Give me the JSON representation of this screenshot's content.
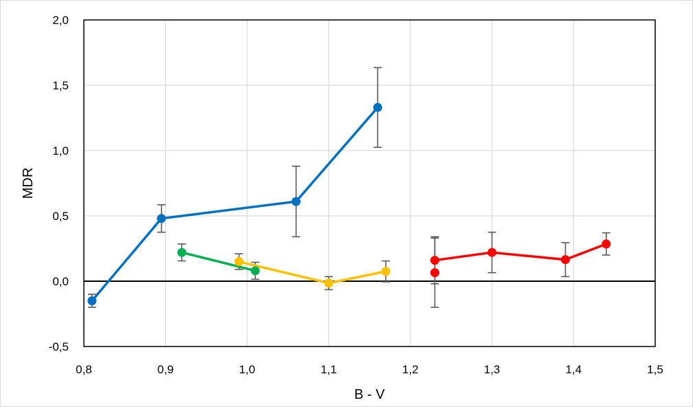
{
  "chart_data": {
    "type": "scatter",
    "title": "",
    "xlabel": "B - V",
    "ylabel": "MDR",
    "xlim": [
      0.8,
      1.5
    ],
    "ylim": [
      -0.5,
      2.0
    ],
    "x_ticks": [
      "0,8",
      "0,9",
      "1,0",
      "1,1",
      "1,2",
      "1,3",
      "1,4",
      "1,5"
    ],
    "y_ticks": [
      "-0,5",
      "0,0",
      "0,5",
      "1,0",
      "1,5",
      "2,0"
    ],
    "grid": true,
    "legend": "none",
    "series": [
      {
        "color": "#0070C0",
        "connected": true,
        "points": [
          {
            "x": 0.81,
            "y": -0.15,
            "err": 0.05
          },
          {
            "x": 0.895,
            "y": 0.48,
            "err": 0.105
          },
          {
            "x": 1.06,
            "y": 0.61,
            "err": 0.27
          },
          {
            "x": 1.16,
            "y": 1.33,
            "err": 0.305
          }
        ]
      },
      {
        "color": "#00B050",
        "connected": true,
        "points": [
          {
            "x": 0.92,
            "y": 0.22,
            "err": 0.065
          },
          {
            "x": 1.01,
            "y": 0.08,
            "err": 0.065
          }
        ]
      },
      {
        "color": "#FFC000",
        "connected": true,
        "points": [
          {
            "x": 0.99,
            "y": 0.15,
            "err": 0.06
          },
          {
            "x": 1.1,
            "y": -0.015,
            "err": 0.05
          },
          {
            "x": 1.17,
            "y": 0.075,
            "err": 0.08
          }
        ]
      },
      {
        "color": "#FF0000",
        "connected": true,
        "points": [
          {
            "x": 1.23,
            "y": 0.16,
            "err": 0.18
          },
          {
            "x": 1.3,
            "y": 0.22,
            "err": 0.155
          },
          {
            "x": 1.39,
            "y": 0.165,
            "err": 0.13
          },
          {
            "x": 1.44,
            "y": 0.285,
            "err": 0.085
          }
        ]
      },
      {
        "color": "#FF0000",
        "connected": false,
        "points": [
          {
            "x": 1.23,
            "y": 0.065,
            "err": 0.265
          }
        ]
      }
    ]
  }
}
